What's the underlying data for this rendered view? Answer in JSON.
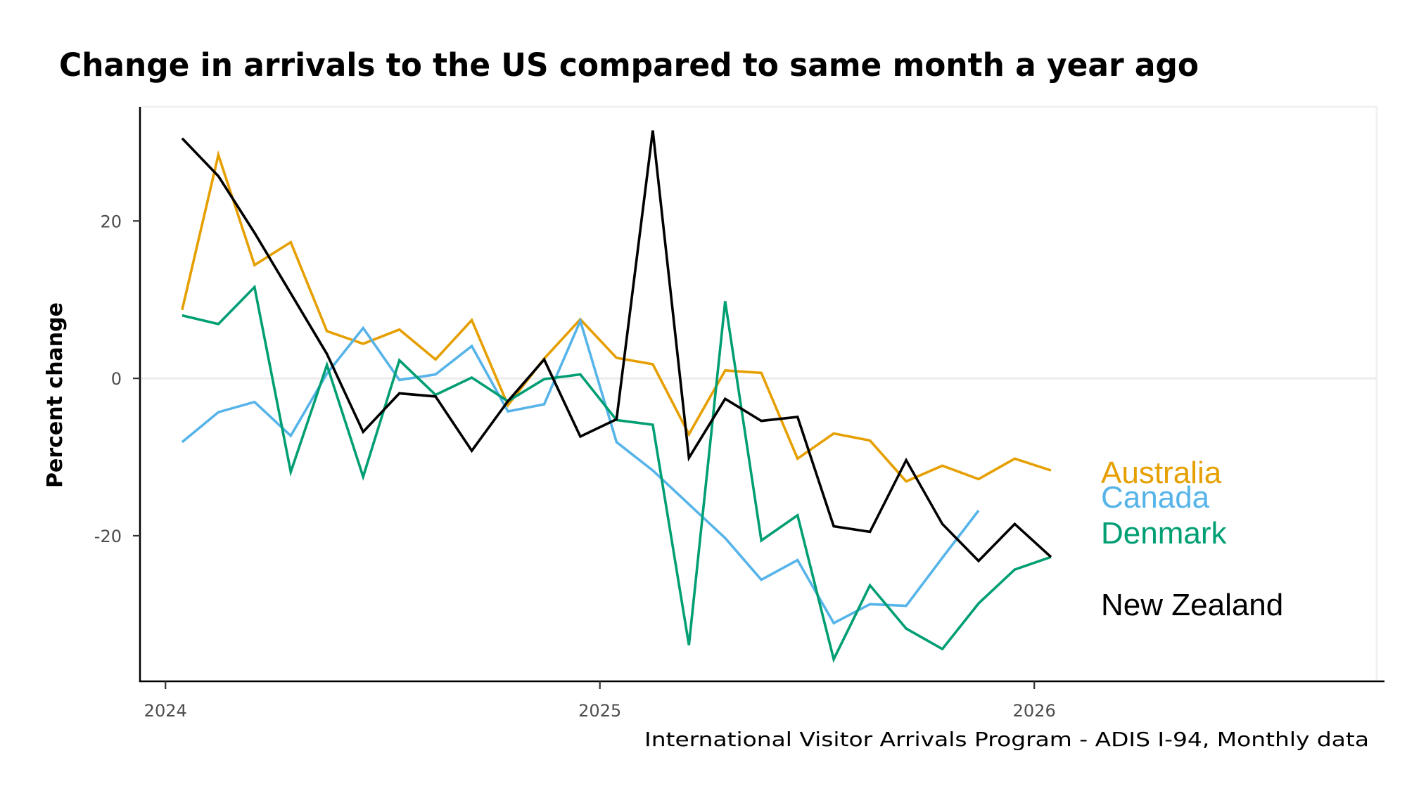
{
  "chart_data": {
    "type": "line",
    "title": "Change in arrivals to the US compared to same month a year ago",
    "xlabel": "",
    "ylabel": "Percent change",
    "caption": "International Visitor Arrivals Program - ADIS I-94, Monthly data",
    "x": [
      "2024-01",
      "2024-02",
      "2024-03",
      "2024-04",
      "2024-05",
      "2024-06",
      "2024-07",
      "2024-08",
      "2024-09",
      "2024-10",
      "2024-11",
      "2024-12",
      "2025-01",
      "2025-02",
      "2025-03",
      "2025-04",
      "2025-05",
      "2025-06",
      "2025-07",
      "2025-08",
      "2025-09",
      "2025-10",
      "2025-11",
      "2025-12",
      "2026-01"
    ],
    "x_ticks": [
      {
        "value": "2024-01-01",
        "label": "2024"
      },
      {
        "value": "2025-01-01",
        "label": "2025"
      },
      {
        "value": "2026-01-01",
        "label": "2026"
      }
    ],
    "y_ticks": [
      {
        "value": 20,
        "label": "20"
      },
      {
        "value": 0,
        "label": "0"
      },
      {
        "value": -20,
        "label": "-20"
      }
    ],
    "xlim": [
      "2023-12-10",
      "2026-10-15"
    ],
    "ylim": [
      -38.5,
      34.5
    ],
    "grid": "horizontal line at zero only",
    "legend": "direct labels at right end of lines",
    "series": [
      {
        "name": "Australia",
        "color": "#E69F00",
        "values": [
          8.7,
          28.4,
          14.4,
          17.3,
          6.0,
          4.4,
          6.2,
          2.4,
          7.4,
          -3.4,
          2.5,
          7.5,
          2.6,
          1.8,
          -7.1,
          1.0,
          0.7,
          -10.2,
          -7.0,
          -7.9,
          -13.1,
          -11.1,
          -12.8,
          -10.2,
          -11.7
        ]
      },
      {
        "name": "Canada",
        "color": "#56B4E9",
        "values": [
          -8.1,
          -4.3,
          -3.0,
          -7.3,
          0.6,
          6.4,
          -0.2,
          0.5,
          4.1,
          -4.2,
          -3.3,
          7.3,
          -8.1,
          -11.7,
          -16.0,
          -20.3,
          -25.6,
          -23.1,
          -31.1,
          -28.7,
          -28.9,
          -22.8,
          -16.8,
          null,
          null
        ]
      },
      {
        "name": "Denmark",
        "color": "#009E73",
        "values": [
          8.0,
          6.9,
          11.6,
          -11.9,
          1.7,
          -12.5,
          2.3,
          -2.1,
          0.1,
          -2.9,
          -0.1,
          0.5,
          -5.3,
          -5.9,
          -33.9,
          9.8,
          -20.6,
          -17.4,
          -35.7,
          -26.3,
          -31.8,
          -34.4,
          -28.6,
          -24.3,
          -22.7
        ]
      },
      {
        "name": "New Zealand",
        "color": "#000000",
        "values": [
          30.5,
          25.7,
          18.5,
          10.8,
          3.1,
          -6.8,
          -1.9,
          -2.3,
          -9.2,
          -2.9,
          2.4,
          -7.4,
          -5.2,
          31.5,
          -10.1,
          -2.6,
          -5.4,
          -4.9,
          -18.8,
          -19.5,
          -10.4,
          -18.5,
          -23.2,
          -18.5,
          -22.7
        ]
      }
    ]
  }
}
